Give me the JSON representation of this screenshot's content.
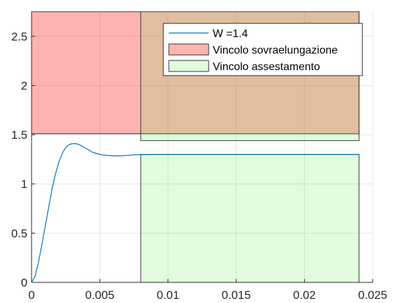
{
  "chart_data": {
    "type": "line",
    "xlim": [
      0,
      0.025
    ],
    "ylim": [
      0,
      2.75
    ],
    "x_ticks": [
      0,
      0.005,
      0.01,
      0.015,
      0.02,
      0.025
    ],
    "x_tick_labels": [
      "0",
      "0.005",
      "0.01",
      "0.015",
      "0.02",
      "0.025"
    ],
    "y_ticks": [
      0,
      0.5,
      1,
      1.5,
      2,
      2.5
    ],
    "y_tick_labels": [
      "0",
      "0.5",
      "1",
      "1.5",
      "2",
      "2.5"
    ],
    "grid": true,
    "legend_position": "top-right",
    "regions": [
      {
        "name": "Vincolo sovraelungazione",
        "color": "#ff0000",
        "opacity": 0.3,
        "x": [
          0,
          0.024
        ],
        "y": [
          1.51,
          2.75
        ]
      },
      {
        "name": "Vincolo assestamento",
        "color": "#66ee55",
        "opacity": 0.2,
        "segments": [
          {
            "x": [
              0.008,
              0.024
            ],
            "y": [
              1.44,
              2.75
            ]
          },
          {
            "x": [
              0.008,
              0.024
            ],
            "y": [
              0,
              1.3
            ]
          }
        ]
      }
    ],
    "series": [
      {
        "name": "W =1.4",
        "color": "#0072bd",
        "x": [
          0,
          0.00025,
          0.0005,
          0.00075,
          0.001,
          0.00125,
          0.0015,
          0.00175,
          0.002,
          0.00225,
          0.0025,
          0.00275,
          0.003,
          0.00325,
          0.0035,
          0.00375,
          0.004,
          0.00425,
          0.0045,
          0.005,
          0.0055,
          0.006,
          0.0065,
          0.007,
          0.0075,
          0.008,
          0.009,
          0.01,
          0.012,
          0.015,
          0.018,
          0.021,
          0.024
        ],
        "y": [
          0,
          0.06,
          0.2,
          0.38,
          0.57,
          0.76,
          0.95,
          1.1,
          1.22,
          1.31,
          1.37,
          1.4,
          1.41,
          1.41,
          1.4,
          1.38,
          1.36,
          1.34,
          1.32,
          1.3,
          1.29,
          1.285,
          1.285,
          1.29,
          1.295,
          1.298,
          1.3,
          1.3,
          1.3,
          1.3,
          1.3,
          1.3,
          1.3
        ]
      }
    ],
    "legend": [
      {
        "label": "W =1.4",
        "kind": "line",
        "color": "#0072bd"
      },
      {
        "label": "Vincolo sovraelungazione",
        "kind": "patch",
        "color": "#ff0000",
        "opacity": 0.3
      },
      {
        "label": "Vincolo assestamento",
        "kind": "patch",
        "color": "#66ee55",
        "opacity": 0.2
      }
    ]
  }
}
